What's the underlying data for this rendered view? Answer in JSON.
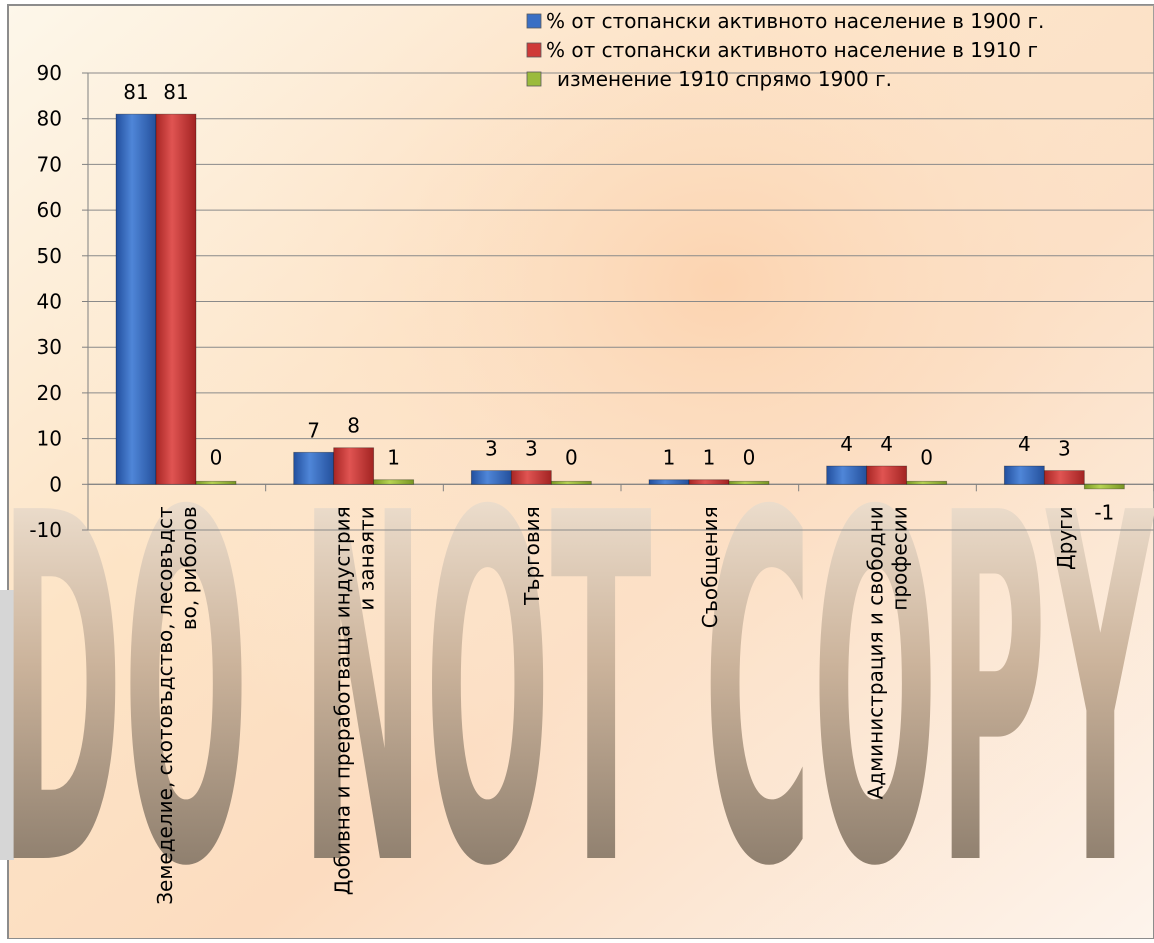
{
  "chart_data": {
    "type": "bar",
    "categories": [
      [
        "Земеделие, скотовъдство, лесовъдст",
        "во, риболов"
      ],
      [
        "Добивна и преработваща индустрия",
        "и занаяти"
      ],
      [
        "Търговия"
      ],
      [
        "Съобщения"
      ],
      [
        "Администрация и свободни",
        "професии"
      ],
      [
        "Други"
      ]
    ],
    "series": [
      {
        "name": "% от стопански активното население в 1900 г.",
        "values": [
          81,
          7,
          3,
          1,
          4,
          4
        ],
        "color": "#3a6fc4"
      },
      {
        "name": "% от стопански активното население в 1910 г",
        "values": [
          81,
          8,
          3,
          1,
          4,
          3
        ],
        "color": "#cf3a38"
      },
      {
        "name": "изменение 1910 спрямо 1900 г.",
        "values": [
          0,
          1,
          0,
          0,
          0,
          -1
        ],
        "color": "#9bbb3c"
      }
    ],
    "data_labels": [
      [
        "81",
        "7",
        "3",
        "1",
        "4",
        "4"
      ],
      [
        "81",
        "8",
        "3",
        "1",
        "4",
        "3"
      ],
      [
        "0",
        "1",
        "0",
        "0",
        "0",
        "-1"
      ]
    ],
    "y_ticks": [
      "90",
      "80",
      "70",
      "60",
      "50",
      "40",
      "30",
      "20",
      "10",
      "0",
      "-10"
    ],
    "ylim": [
      -10,
      90
    ],
    "grid": true,
    "legend_position": "top-right"
  },
  "watermark": "DO NOT COPY"
}
